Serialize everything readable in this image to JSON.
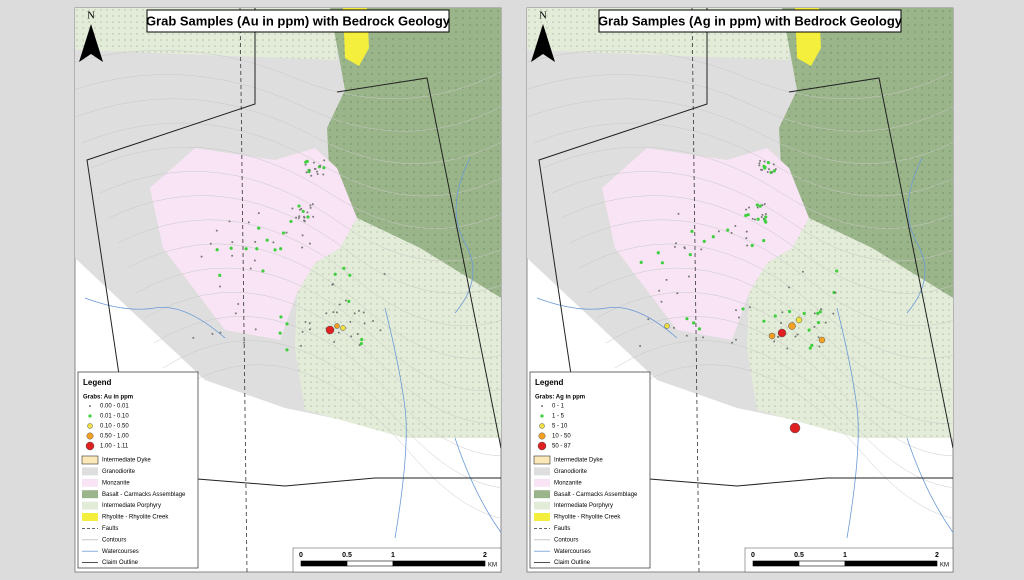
{
  "units": [
    "Intermediate Dyke",
    "Granodiorite",
    "Monzanite",
    "Basalt - Carmacks Assemblage",
    "Intermediate Porphyry",
    "Rhyolite - Rhyolite Creek",
    "Faults",
    "Contours",
    "Watercourses",
    "Claim Outline"
  ],
  "scale": {
    "ticks": [
      "0",
      "0.5",
      "1",
      "2"
    ],
    "unit": "KM"
  },
  "maps": [
    {
      "title": "Grab Samples (Au in ppm) with Bedrock Geology",
      "north": "N",
      "legend": {
        "title": "Legend",
        "group": "Grabs: Au in ppm",
        "classes": [
          "0.00 - 0.01",
          "0.01 - 0.10",
          "0.10 - 0.50",
          "0.50 - 1.00",
          "1.00 - 1.11"
        ]
      }
    },
    {
      "title": "Grab Samples (Ag in ppm) with Bedrock Geology",
      "north": "N",
      "legend": {
        "title": "Legend",
        "group": "Grabs: Ag in ppm",
        "classes": [
          "0 - 1",
          "1 - 5",
          "5 - 10",
          "10 - 50",
          "50 - 87"
        ]
      }
    }
  ]
}
